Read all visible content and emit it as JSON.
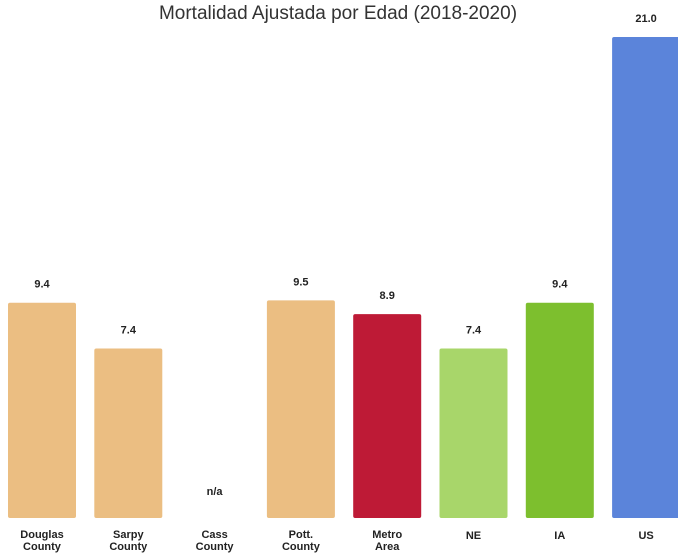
{
  "chart_data": {
    "type": "bar",
    "title": "Mortalidad Ajustada por Edad (2018-2020)",
    "categories": [
      "Douglas County",
      "Sarpy County",
      "Cass County",
      "Pott. County",
      "Metro Area",
      "NE",
      "IA",
      "US"
    ],
    "values": [
      9.4,
      7.4,
      null,
      9.5,
      8.9,
      7.4,
      9.4,
      21.0
    ],
    "value_labels": [
      "9.4",
      "7.4",
      "n/a",
      "9.5",
      "8.9",
      "7.4",
      "9.4",
      "21.0"
    ],
    "colors": [
      "#ebbe82",
      "#ebbe82",
      "#ebbe82",
      "#ebbe82",
      "#be1a36",
      "#a8d66a",
      "#7dbf2e",
      "#5b84da"
    ]
  }
}
